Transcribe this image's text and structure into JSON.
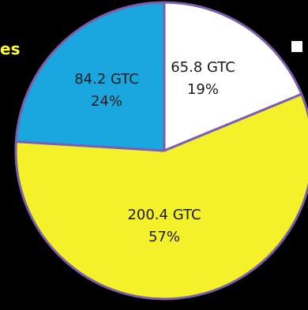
{
  "chart_data": {
    "type": "pie",
    "slices": [
      {
        "label": "65.8 GTC",
        "value": 65.8,
        "percent": "19%",
        "color": "#ffffff"
      },
      {
        "label": "200.4 GTC",
        "value": 200.4,
        "percent": "57%",
        "color": "#f4f02a"
      },
      {
        "label": "84.2 GTC",
        "value": 84.2,
        "percent": "24%",
        "color": "#1aa6df"
      }
    ],
    "border_color": "#7b5fae",
    "legend": {
      "visible_text": "es",
      "text_color": "#ffff33",
      "swatch_color": "#ffffff"
    }
  }
}
